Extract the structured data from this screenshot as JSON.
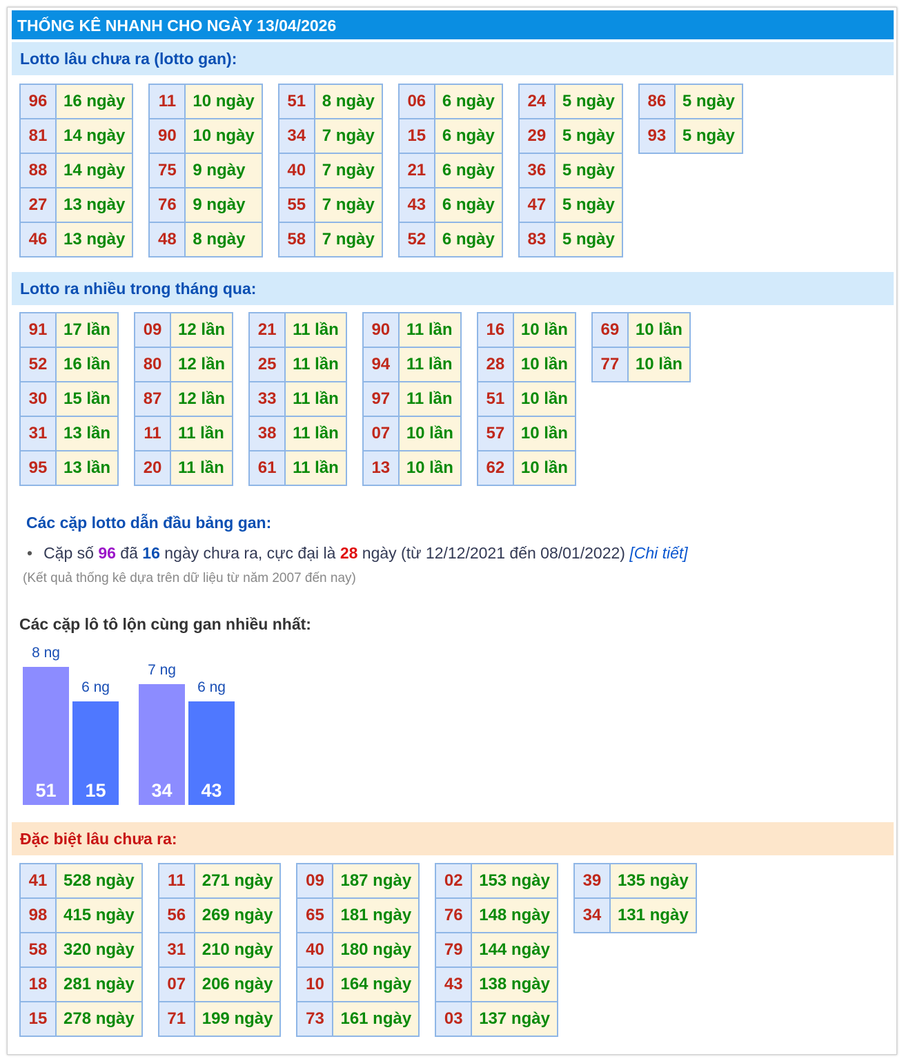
{
  "header": {
    "title": "THỐNG KÊ NHANH CHO NGÀY 13/04/2026"
  },
  "gan": {
    "title": "Lotto lâu chưa ra (lotto gan):",
    "columns": [
      [
        [
          "96",
          "16 ngày"
        ],
        [
          "81",
          "14 ngày"
        ],
        [
          "88",
          "14 ngày"
        ],
        [
          "27",
          "13 ngày"
        ],
        [
          "46",
          "13 ngày"
        ]
      ],
      [
        [
          "11",
          "10 ngày"
        ],
        [
          "90",
          "10 ngày"
        ],
        [
          "75",
          "9 ngày"
        ],
        [
          "76",
          "9 ngày"
        ],
        [
          "48",
          "8 ngày"
        ]
      ],
      [
        [
          "51",
          "8 ngày"
        ],
        [
          "34",
          "7 ngày"
        ],
        [
          "40",
          "7 ngày"
        ],
        [
          "55",
          "7 ngày"
        ],
        [
          "58",
          "7 ngày"
        ]
      ],
      [
        [
          "06",
          "6 ngày"
        ],
        [
          "15",
          "6 ngày"
        ],
        [
          "21",
          "6 ngày"
        ],
        [
          "43",
          "6 ngày"
        ],
        [
          "52",
          "6 ngày"
        ]
      ],
      [
        [
          "24",
          "5 ngày"
        ],
        [
          "29",
          "5 ngày"
        ],
        [
          "36",
          "5 ngày"
        ],
        [
          "47",
          "5 ngày"
        ],
        [
          "83",
          "5 ngày"
        ]
      ],
      [
        [
          "86",
          "5 ngày"
        ],
        [
          "93",
          "5 ngày"
        ]
      ]
    ]
  },
  "frequent": {
    "title": "Lotto ra nhiều trong tháng qua:",
    "columns": [
      [
        [
          "91",
          "17 lần"
        ],
        [
          "52",
          "16 lần"
        ],
        [
          "30",
          "15 lần"
        ],
        [
          "31",
          "13 lần"
        ],
        [
          "95",
          "13 lần"
        ]
      ],
      [
        [
          "09",
          "12 lần"
        ],
        [
          "80",
          "12 lần"
        ],
        [
          "87",
          "12 lần"
        ],
        [
          "11",
          "11 lần"
        ],
        [
          "20",
          "11 lần"
        ]
      ],
      [
        [
          "21",
          "11 lần"
        ],
        [
          "25",
          "11 lần"
        ],
        [
          "33",
          "11 lần"
        ],
        [
          "38",
          "11 lần"
        ],
        [
          "61",
          "11 lần"
        ]
      ],
      [
        [
          "90",
          "11 lần"
        ],
        [
          "94",
          "11 lần"
        ],
        [
          "97",
          "11 lần"
        ],
        [
          "07",
          "10 lần"
        ],
        [
          "13",
          "10 lần"
        ]
      ],
      [
        [
          "16",
          "10 lần"
        ],
        [
          "28",
          "10 lần"
        ],
        [
          "51",
          "10 lần"
        ],
        [
          "57",
          "10 lần"
        ],
        [
          "62",
          "10 lần"
        ]
      ],
      [
        [
          "69",
          "10 lần"
        ],
        [
          "77",
          "10 lần"
        ]
      ]
    ]
  },
  "lead": {
    "title": "Các cặp lotto dẫn đầu bảng gan:",
    "text1": "Cặp số ",
    "pair": "96",
    "text2": " đã ",
    "days": "16",
    "text3": " ngày chưa ra, cực đại là ",
    "max": "28",
    "text4": " ngày (từ 12/12/2021 đến 08/01/2022) ",
    "link": "[Chi tiết]",
    "note": "(Kết quả thống kê dựa trên dữ liệu từ năm 2007 đến nay)"
  },
  "pairs_chart": {
    "title": "Các cặp lô tô lộn cùng gan nhiều nhất:",
    "bars": [
      {
        "number": "51",
        "days": 8,
        "days_label": "8 ng"
      },
      {
        "number": "15",
        "days": 6,
        "days_label": "6 ng"
      },
      {
        "number": "34",
        "days": 7,
        "days_label": "7 ng"
      },
      {
        "number": "43",
        "days": 6,
        "days_label": "6 ng"
      }
    ]
  },
  "special": {
    "title": "Đặc biệt lâu chưa ra:",
    "columns": [
      [
        [
          "41",
          "528 ngày"
        ],
        [
          "98",
          "415 ngày"
        ],
        [
          "58",
          "320 ngày"
        ],
        [
          "18",
          "281 ngày"
        ],
        [
          "15",
          "278 ngày"
        ]
      ],
      [
        [
          "11",
          "271 ngày"
        ],
        [
          "56",
          "269 ngày"
        ],
        [
          "31",
          "210 ngày"
        ],
        [
          "07",
          "206 ngày"
        ],
        [
          "71",
          "199 ngày"
        ]
      ],
      [
        [
          "09",
          "187 ngày"
        ],
        [
          "65",
          "181 ngày"
        ],
        [
          "40",
          "180 ngày"
        ],
        [
          "10",
          "164 ngày"
        ],
        [
          "73",
          "161 ngày"
        ]
      ],
      [
        [
          "02",
          "153 ngày"
        ],
        [
          "76",
          "148 ngày"
        ],
        [
          "79",
          "144 ngày"
        ],
        [
          "43",
          "138 ngày"
        ],
        [
          "03",
          "137 ngày"
        ]
      ],
      [
        [
          "39",
          "135 ngày"
        ],
        [
          "34",
          "131 ngày"
        ]
      ]
    ]
  }
}
